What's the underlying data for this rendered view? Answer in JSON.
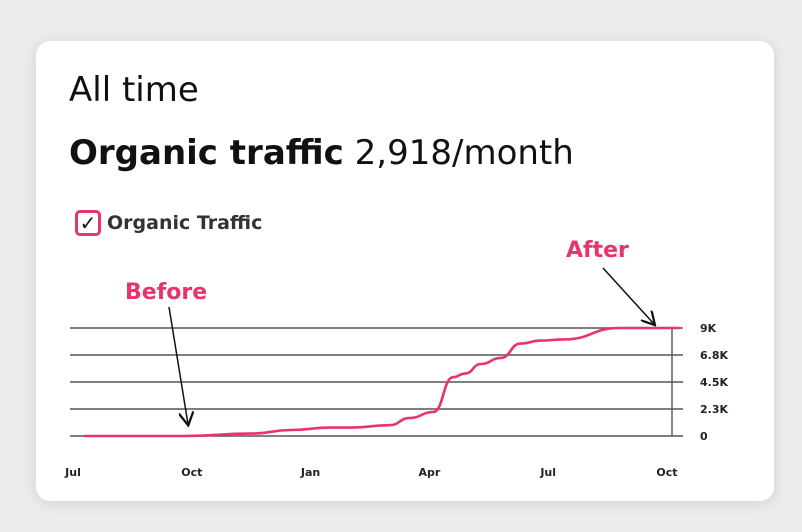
{
  "header": {
    "period": "All time",
    "metric_label": "Organic traffic",
    "metric_value": "2,918/month"
  },
  "legend": {
    "label": "Organic Traffic",
    "checked": true
  },
  "annotations": {
    "before": "Before",
    "after": "After"
  },
  "colors": {
    "line": "#e8336b",
    "grid": "#555555"
  },
  "chart_data": {
    "type": "line",
    "title": "",
    "xlabel": "",
    "ylabel": "",
    "x_ticks": [
      "Jul",
      "Oct",
      "Jan",
      "Apr",
      "Jul",
      "Oct"
    ],
    "y_ticks": [
      "0",
      "2.3K",
      "4.5K",
      "6.8K",
      "9K"
    ],
    "y_tick_values": [
      0,
      2250,
      4500,
      6750,
      9000
    ],
    "ylim": [
      0,
      9000
    ],
    "xlim_months_from_first_jul": [
      0,
      15.2
    ],
    "series": [
      {
        "name": "Organic Traffic",
        "x": [
          0.3,
          2.8,
          4.5,
          5.5,
          6.5,
          7.0,
          8.0,
          8.5,
          9.1,
          9.6,
          9.9,
          10.3,
          10.8,
          11.3,
          11.8,
          12.4,
          13.8,
          14.3,
          15.3
        ],
        "y": [
          0,
          0,
          200,
          500,
          700,
          700,
          900,
          1500,
          2000,
          4900,
          5200,
          6000,
          6500,
          7700,
          7950,
          8050,
          9000,
          9000,
          9000
        ]
      }
    ],
    "grid": true,
    "legend_position": "top-left"
  }
}
